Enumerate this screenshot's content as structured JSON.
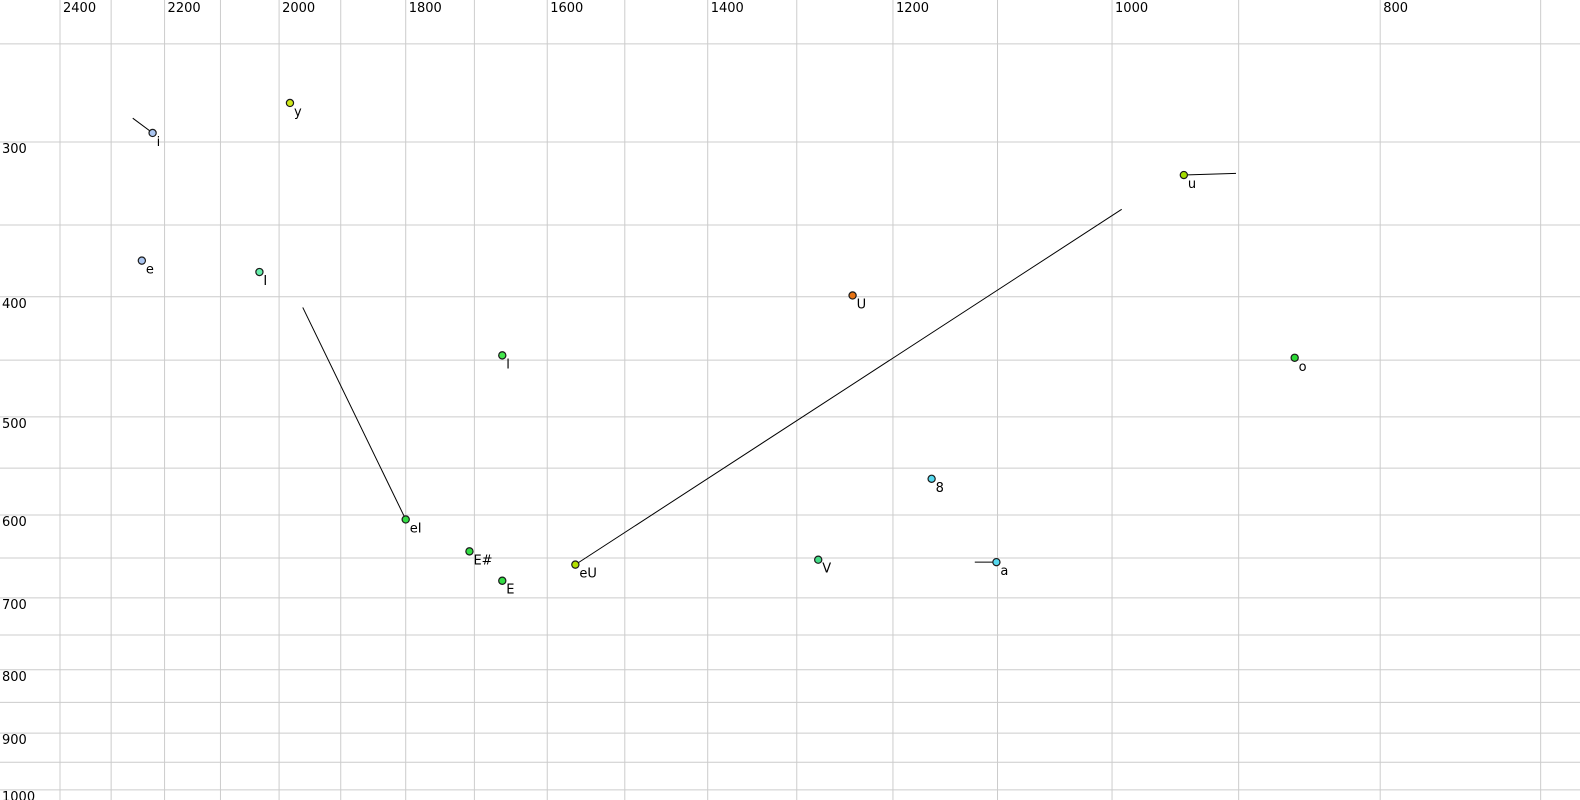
{
  "chart_data": {
    "type": "scatter",
    "title": "",
    "description": "Vowel formant plot: F2 (Hz) on top horizontal axis, reversed, log scale; F1 (Hz) on left vertical axis, increasing downward, log scale. Points are vowels labeled with X-SAMPA-like symbols; some points have trajectory lines (diphthongs / glides).",
    "x_axis": {
      "orientation": "top",
      "unit": "Hz",
      "scale": "log",
      "reversed": true,
      "tick_labels": [
        "2400",
        "2200",
        "2000",
        "1800",
        "1600",
        "1400",
        "1200",
        "1000",
        "800"
      ],
      "tick_values": [
        2400,
        2200,
        2000,
        1800,
        1600,
        1400,
        1200,
        1000,
        800
      ],
      "gridlines": [
        2400,
        2300,
        2200,
        2100,
        2000,
        1900,
        1800,
        1700,
        1600,
        1500,
        1400,
        1300,
        1200,
        1100,
        1000,
        900,
        800,
        700
      ],
      "visible_range": [
        2523,
        677
      ]
    },
    "y_axis": {
      "orientation": "left",
      "unit": "Hz",
      "scale": "log",
      "reversed": false,
      "tick_labels": [
        "300",
        "400",
        "500",
        "600",
        "700",
        "800",
        "900",
        "1000"
      ],
      "tick_values": [
        300,
        400,
        500,
        600,
        700,
        800,
        900,
        1000
      ],
      "gridlines": [
        250,
        300,
        350,
        400,
        450,
        500,
        550,
        600,
        650,
        700,
        750,
        800,
        850,
        900,
        950,
        1000
      ],
      "visible_range": [
        230,
        1019
      ]
    },
    "grid": true,
    "legend": false,
    "points": [
      {
        "label": "i",
        "f2": 2222,
        "f1": 295,
        "color": "#aac5f0",
        "tail": {
          "f2": 2259,
          "f1": 287
        }
      },
      {
        "label": "y",
        "f2": 1982,
        "f1": 279,
        "color": "#cfe81a",
        "tail": null
      },
      {
        "label": "e",
        "f2": 2242,
        "f1": 374,
        "color": "#aac5f0",
        "tail": null
      },
      {
        "label": "I",
        "f2": 2033,
        "f1": 382,
        "color": "#66eeaa",
        "tail": null
      },
      {
        "label": "U",
        "f2": 1241,
        "f1": 399,
        "color": "#e87414",
        "tail": null
      },
      {
        "label": "u",
        "f2": 942,
        "f1": 319,
        "color": "#a4dc00",
        "tail": {
          "f2": 902,
          "f1": 318
        }
      },
      {
        "label": "l",
        "f2": 1661,
        "f1": 446,
        "color": "#44e64d",
        "tail": null
      },
      {
        "label": "o",
        "f2": 859,
        "f1": 448,
        "color": "#2bd936",
        "tail": null
      },
      {
        "label": "8",
        "f2": 1162,
        "f1": 561,
        "color": "#55d8ee",
        "tail": null
      },
      {
        "label": "eI",
        "f2": 1800,
        "f1": 605,
        "color": "#33dd44",
        "tail": {
          "f2": 1961,
          "f1": 408
        }
      },
      {
        "label": "E#",
        "f2": 1707,
        "f1": 642,
        "color": "#33dd44",
        "tail": null
      },
      {
        "label": "E",
        "f2": 1661,
        "f1": 678,
        "color": "#33dd44",
        "tail": null
      },
      {
        "label": "eU",
        "f2": 1563,
        "f1": 658,
        "color": "#b2e000",
        "tail": {
          "f2": 992,
          "f1": 340
        }
      },
      {
        "label": "V",
        "f2": 1277,
        "f1": 652,
        "color": "#44dd88",
        "tail": null
      },
      {
        "label": "a",
        "f2": 1101,
        "f1": 655,
        "color": "#55d8ee",
        "tail": {
          "f2": 1121,
          "f1": 655
        }
      }
    ],
    "style": {
      "background": "#ffffff",
      "grid_color": "#cccccc",
      "tick_text_color": "#000000",
      "point_border_color": "#1a1a1a",
      "point_label_color": "#111111",
      "trajectory_color": "#000000"
    }
  }
}
